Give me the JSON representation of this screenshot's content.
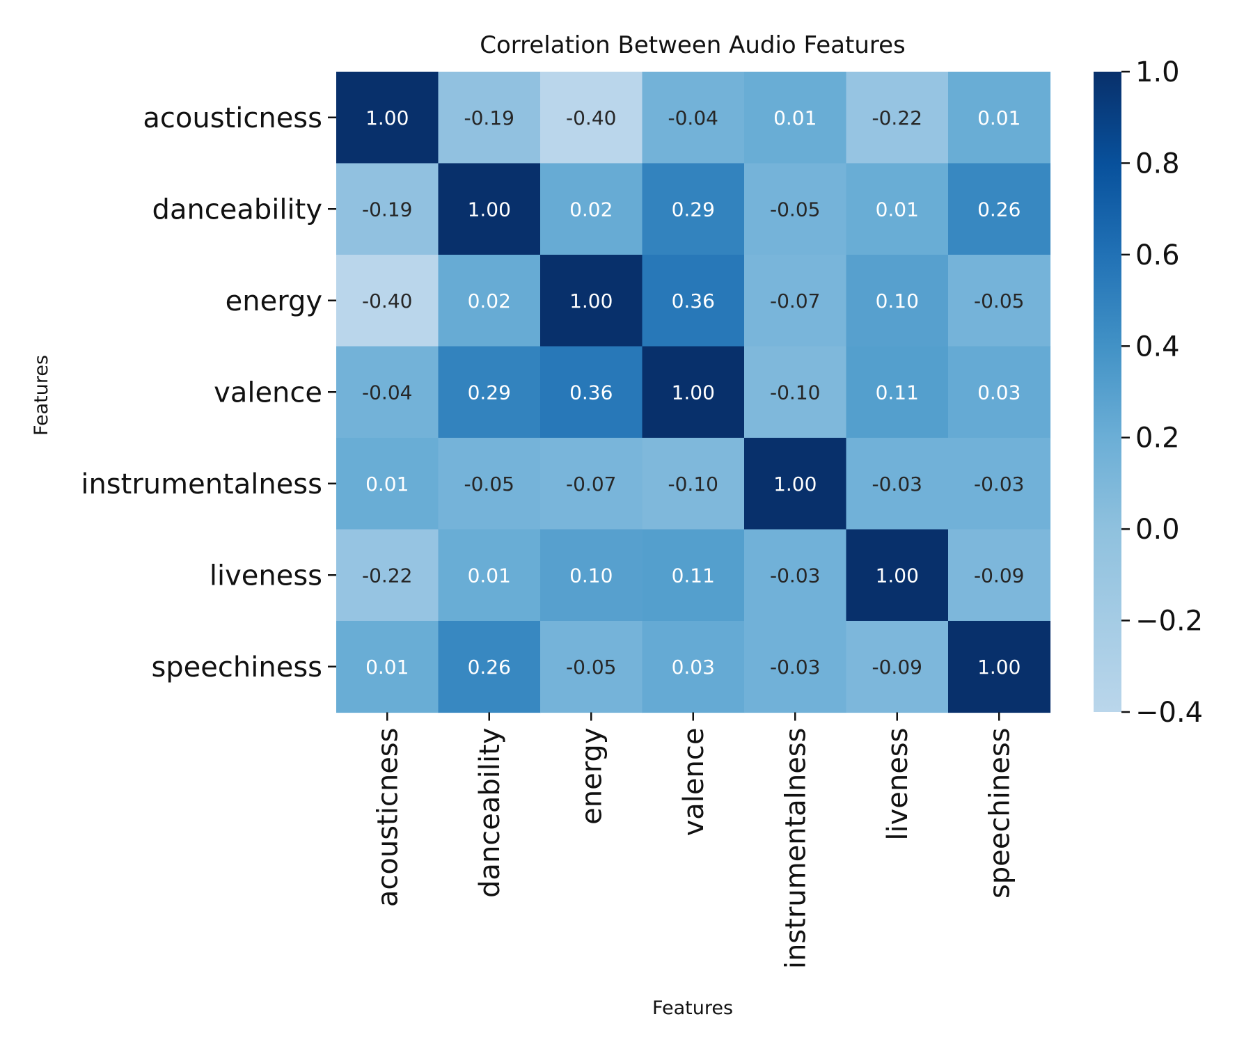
{
  "chart_data": {
    "type": "heatmap",
    "title": "Correlation Between Audio Features",
    "xlabel": "Features",
    "ylabel": "Features",
    "x_categories": [
      "acousticness",
      "danceability",
      "energy",
      "valence",
      "instrumentalness",
      "liveness",
      "speechiness"
    ],
    "y_categories": [
      "acousticness",
      "danceability",
      "energy",
      "valence",
      "instrumentalness",
      "liveness",
      "speechiness"
    ],
    "values": [
      [
        1.0,
        -0.19,
        -0.4,
        -0.04,
        0.01,
        -0.22,
        0.01
      ],
      [
        -0.19,
        1.0,
        0.02,
        0.29,
        -0.05,
        0.01,
        0.26
      ],
      [
        -0.4,
        0.02,
        1.0,
        0.36,
        -0.07,
        0.1,
        -0.05
      ],
      [
        -0.04,
        0.29,
        0.36,
        1.0,
        -0.1,
        0.11,
        0.03
      ],
      [
        0.01,
        -0.05,
        -0.07,
        -0.1,
        1.0,
        -0.03,
        -0.03
      ],
      [
        -0.22,
        0.01,
        0.1,
        0.11,
        -0.03,
        1.0,
        -0.09
      ],
      [
        0.01,
        0.26,
        -0.05,
        0.03,
        -0.03,
        -0.09,
        1.0
      ]
    ],
    "value_format": "0.00",
    "colormap": "Blues",
    "colors": {
      "min": "#bad6eb",
      "max": "#08306b",
      "text_dark": "#262626",
      "text_light": "#ffffff"
    },
    "colorbar": {
      "range": [
        -0.4,
        1.0
      ],
      "ticks": [
        1.0,
        0.8,
        0.6,
        0.4,
        0.2,
        0.0,
        -0.2,
        -0.4
      ],
      "tick_labels": [
        "1.0",
        "0.8",
        "0.6",
        "0.4",
        "0.2",
        "0.0",
        "−0.2",
        "−0.4"
      ]
    }
  }
}
